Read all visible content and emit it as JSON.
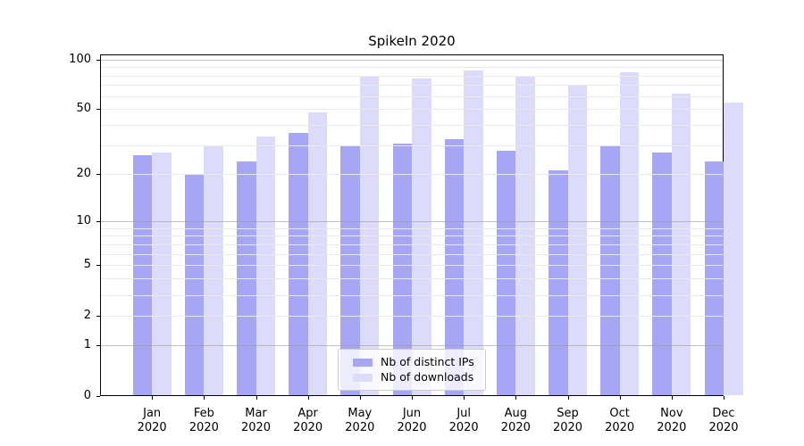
{
  "title": "SpikeIn 2020",
  "chart_data": {
    "type": "bar",
    "title": "SpikeIn 2020",
    "categories": [
      "Jan 2020",
      "Feb 2020",
      "Mar 2020",
      "Apr 2020",
      "May 2020",
      "Jun 2020",
      "Jul 2020",
      "Aug 2020",
      "Sep 2020",
      "Oct 2020",
      "Nov 2020",
      "Dec 2020"
    ],
    "x_tick_months": [
      "Jan",
      "Feb",
      "Mar",
      "Apr",
      "May",
      "Jun",
      "Jul",
      "Aug",
      "Sep",
      "Oct",
      "Nov",
      "Dec"
    ],
    "x_tick_year": "2020",
    "series": [
      {
        "name": "Nb of distinct IPs",
        "color": "#a6a6f4",
        "values": [
          26,
          20,
          24,
          36,
          30,
          31,
          33,
          28,
          21,
          30,
          27,
          24
        ]
      },
      {
        "name": "Nb of downloads",
        "color": "#dcdcfa",
        "values": [
          27,
          30,
          34,
          48,
          80,
          77,
          86,
          79,
          70,
          84,
          62,
          55
        ]
      }
    ],
    "y_scale": "log1p",
    "ylim": [
      0,
      107
    ],
    "y_ticks": [
      0,
      1,
      2,
      5,
      10,
      20,
      50,
      100
    ],
    "y_tick_labels": [
      "0",
      "1",
      "2",
      "5",
      "10",
      "20",
      "50",
      "100"
    ],
    "grid": {
      "on": true,
      "drawn_above_bars": true,
      "decade_lines": [
        1,
        10,
        100
      ],
      "light_lines": [
        2,
        3,
        4,
        5,
        6,
        7,
        8,
        9,
        20,
        30,
        40,
        50,
        60,
        70,
        80,
        90
      ]
    },
    "legend_position": "lower center inside"
  },
  "legend": {
    "items": [
      {
        "label": "Nb of distinct IPs",
        "color": "#a6a6f4"
      },
      {
        "label": "Nb of downloads",
        "color": "#dcdcfa"
      }
    ]
  },
  "colors": {
    "bar_distinct_ips": "#a6a6f4",
    "bar_downloads": "#dcdcfa",
    "grid_decade": "#9a9a9a",
    "grid_light": "#e9e9e9",
    "spine": "#000000",
    "text": "#000000",
    "legend_border": "#cccccc",
    "legend_background": "rgba(255,255,255,0.8)"
  }
}
